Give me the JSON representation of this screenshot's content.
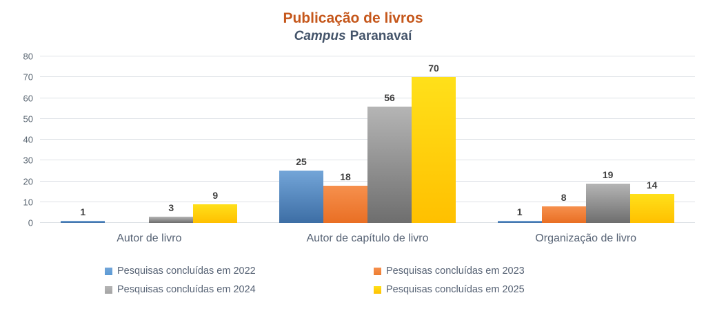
{
  "header": {
    "title": "Publicação de livros",
    "subtitle_italic": "Campus",
    "subtitle_regular": "Paranavaí"
  },
  "colors": {
    "title_text": "#c5571b",
    "subtitle_text": "#44546a",
    "axis_tick_text": "#5a6672",
    "category_text": "#566274",
    "data_label_text": "#3f3f3f",
    "legend_text": "#566274",
    "gridline": "#dde1e6"
  },
  "chart_data": {
    "type": "bar",
    "title": "Publicação de livros",
    "subtitle": "Campus Paranavaí",
    "categories": [
      "Autor de livro",
      "Autor de capítulo de livro",
      "Organização de livro"
    ],
    "series": [
      {
        "name": "Pesquisas concluídas em 2022",
        "values": [
          1,
          25,
          1
        ],
        "color": "#5b9bd5",
        "gradient_top": "#73a5d8",
        "gradient_bottom": "#3d6ea5"
      },
      {
        "name": "Pesquisas concluídas em 2023",
        "values": [
          0,
          18,
          8
        ],
        "color": "#ed7d31",
        "gradient_top": "#f6904d",
        "gradient_bottom": "#e96f24"
      },
      {
        "name": "Pesquisas concluídas em 2024",
        "values": [
          3,
          56,
          19
        ],
        "color": "#a5a5a5",
        "gradient_top": "#b5b5b5",
        "gradient_bottom": "#6e6e6e"
      },
      {
        "name": "Pesquisas concluídas em 2025",
        "values": [
          9,
          70,
          14
        ],
        "color": "#ffc000",
        "gradient_top": "#ffe01a",
        "gradient_bottom": "#ffc000"
      }
    ],
    "y_ticks": [
      0,
      10,
      20,
      30,
      40,
      50,
      60,
      70,
      80
    ],
    "ylim": [
      0,
      80
    ],
    "grid": true,
    "data_labels": true,
    "hide_zero_labels": true,
    "legend_position": "bottom",
    "legend_columns": 2
  }
}
